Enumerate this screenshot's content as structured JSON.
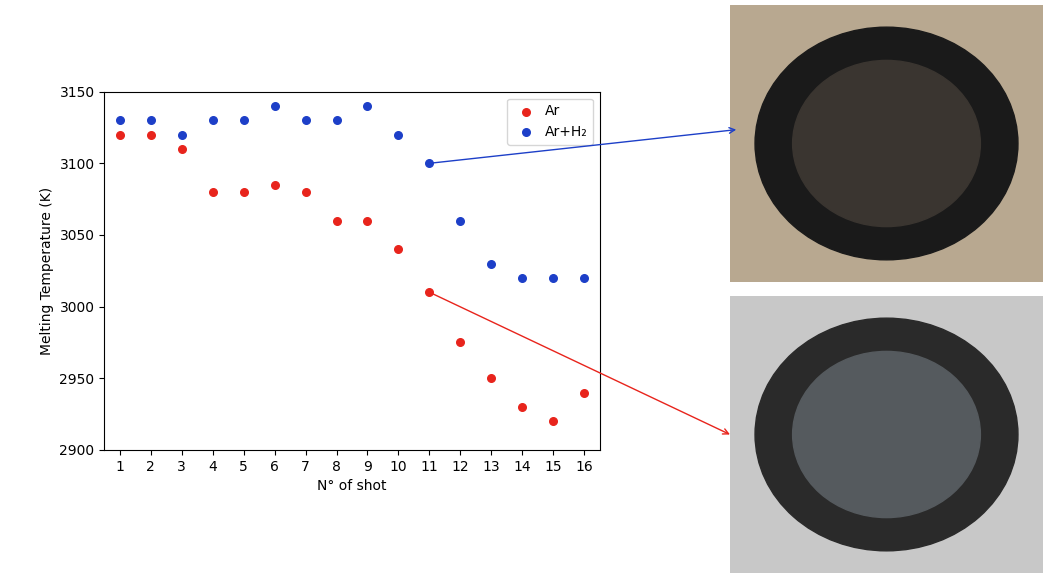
{
  "chart_data": {
    "type": "scatter",
    "x_label": "N° of shot",
    "y_label": "Melting Temperature (K)",
    "x": [
      1,
      2,
      3,
      4,
      5,
      6,
      7,
      8,
      9,
      10,
      11,
      12,
      13,
      14,
      15,
      16
    ],
    "series": [
      {
        "name": "Ar",
        "color": "#e8241c",
        "marker": "circle",
        "values": [
          3120,
          3120,
          3110,
          3080,
          3080,
          3085,
          3080,
          3060,
          3060,
          3040,
          3010,
          2975,
          2950,
          2930,
          2920,
          2940
        ]
      },
      {
        "name": "Ar+H₂",
        "color": "#1d3fc8",
        "marker": "circle",
        "values": [
          3130,
          3130,
          3120,
          3130,
          3130,
          3140,
          3130,
          3130,
          3140,
          3120,
          3100,
          3060,
          3030,
          3020,
          3020,
          3020
        ]
      }
    ],
    "xlim": [
      0.5,
      16.5
    ],
    "xticks": [
      1,
      2,
      3,
      4,
      5,
      6,
      7,
      8,
      9,
      10,
      11,
      12,
      13,
      14,
      15,
      16
    ],
    "ylim": [
      2900,
      3150
    ],
    "yticks": [
      2900,
      2950,
      3000,
      3050,
      3100,
      3150
    ],
    "legend": "upper right",
    "grid": false
  }
}
